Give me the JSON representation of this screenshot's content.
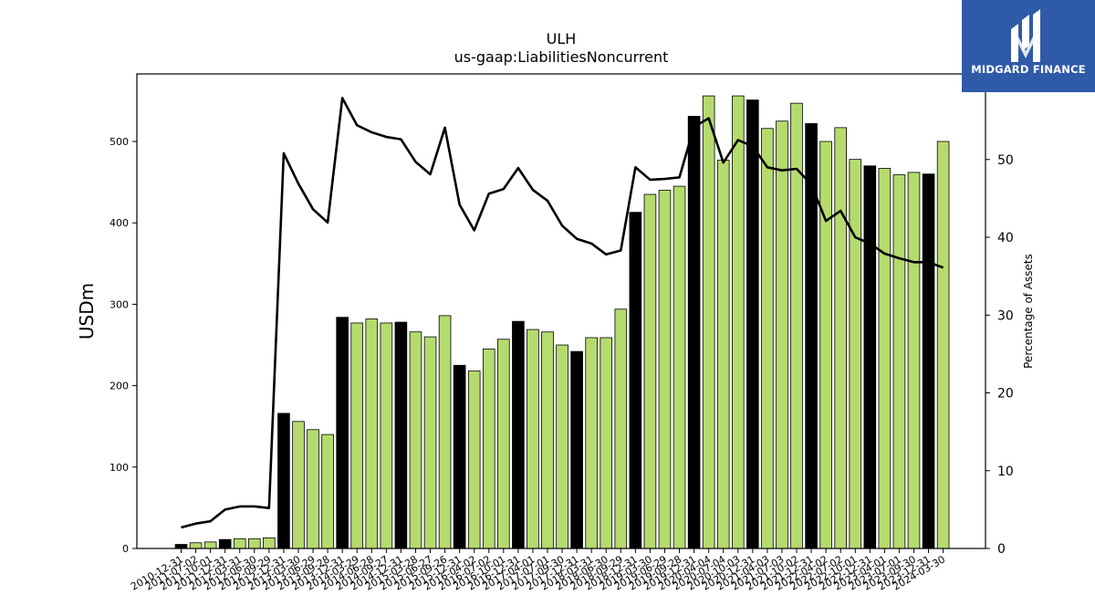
{
  "chart_data": {
    "type": "bar",
    "title": "ULH",
    "subtitle": "us-gaap:LiabilitiesNoncurrent",
    "ylabel": "USDm",
    "y2label": "Percentage of Assets",
    "ylim": [
      0,
      583
    ],
    "y2lim": [
      0,
      61
    ],
    "yticks": [
      0,
      100,
      200,
      300,
      400,
      500
    ],
    "y2ticks": [
      0,
      10,
      20,
      30,
      40,
      50
    ],
    "categories": [
      "2010-12-31",
      "2011-07-02",
      "2011-10-01",
      "2011-12-31",
      "2012-03-31",
      "2012-06-30",
      "2012-09-29",
      "2012-12-31",
      "2013-03-30",
      "2013-06-29",
      "2013-09-28",
      "2013-12-31",
      "2014-03-29",
      "2014-06-28",
      "2014-09-27",
      "2014-12-31",
      "2015-03-28",
      "2015-06-27",
      "2015-09-26",
      "2015-12-31",
      "2016-04-02",
      "2016-07-02",
      "2016-10-01",
      "2016-12-31",
      "2017-04-01",
      "2017-07-01",
      "2017-09-30",
      "2017-12-31",
      "2018-03-31",
      "2018-06-30",
      "2018-09-29",
      "2018-12-31",
      "2019-03-30",
      "2019-06-29",
      "2019-09-28",
      "2019-12-31",
      "2020-04-04",
      "2020-07-04",
      "2020-10-03",
      "2020-12-31",
      "2021-04-03",
      "2021-07-03",
      "2021-10-02",
      "2021-12-31",
      "2022-04-02",
      "2022-07-02",
      "2022-10-01",
      "2022-12-31",
      "2023-04-01",
      "2023-07-01",
      "2023-09-30",
      "2023-12-31",
      "2024-03-30"
    ],
    "series": [
      {
        "values": [
          5,
          7,
          8,
          11,
          12,
          12,
          13,
          166,
          156,
          146,
          140,
          284,
          277,
          282,
          277,
          278,
          266,
          260,
          286,
          225,
          218,
          245,
          257,
          279,
          269,
          266,
          250,
          242,
          259,
          259,
          294,
          413,
          435,
          440,
          445,
          531,
          556,
          477,
          556,
          551,
          516,
          525,
          547,
          522,
          500,
          517,
          478,
          470,
          467,
          459,
          462,
          460,
          500
        ]
      },
      {
        "values": [
          2.7,
          3.2,
          3.5,
          5.0,
          5.4,
          5.4,
          5.2,
          50.8,
          46.9,
          43.6,
          41.9,
          57.9,
          54.4,
          53.5,
          52.9,
          52.6,
          49.7,
          48.1,
          54.1,
          44.2,
          40.9,
          45.6,
          46.2,
          48.9,
          46.1,
          44.7,
          41.5,
          39.8,
          39.2,
          37.8,
          38.3,
          49.0,
          47.4,
          47.5,
          47.7,
          54.2,
          55.3,
          49.6,
          52.5,
          51.7,
          49.0,
          48.6,
          48.8,
          46.8,
          42.1,
          43.4,
          40.0,
          39.2,
          37.9,
          37.3,
          36.8,
          36.8,
          36.1
        ]
      }
    ],
    "black_bars": [
      0,
      3,
      7,
      11,
      15,
      19,
      23,
      27,
      31,
      35,
      39,
      43,
      47,
      51
    ],
    "colors": {
      "bar": "#b5db6e",
      "bar_highlight": "#000000",
      "line": "#000000"
    }
  },
  "logo": {
    "text": "MIDGARD FINANCE",
    "bg": "#2f5aa8"
  }
}
